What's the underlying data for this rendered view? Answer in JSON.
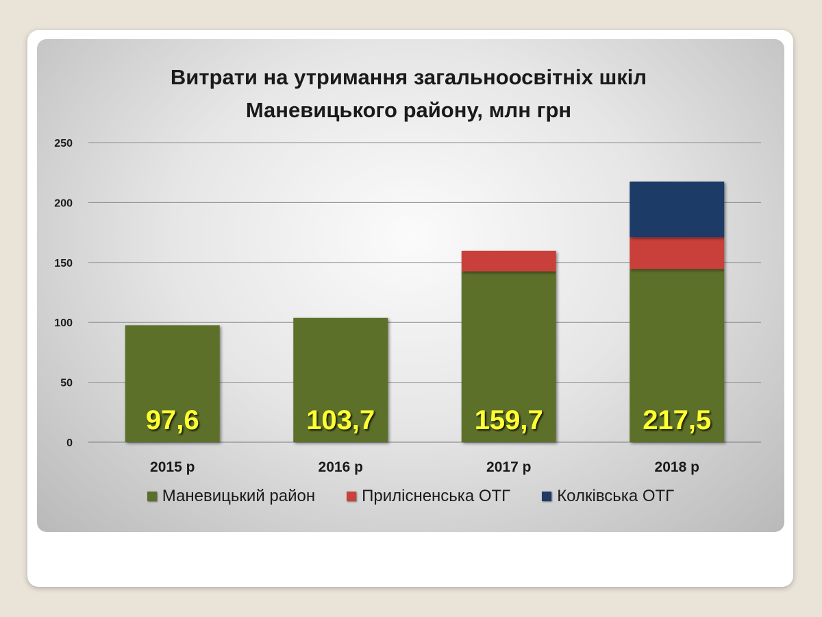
{
  "chart_data": {
    "type": "bar",
    "stacked": true,
    "title_lines": [
      "Витрати на утримання загальноосвітніх шкіл",
      "Маневицького району, млн грн"
    ],
    "categories": [
      "2015 р",
      "2016 р",
      "2017 р",
      "2018 р"
    ],
    "series": [
      {
        "name": "Маневицький район",
        "values": [
          97.6,
          103.7,
          142.5,
          144.5
        ],
        "color": "#5b6f2c"
      },
      {
        "name": "Прилісненська ОТГ",
        "values": [
          0,
          0,
          17.2,
          26.5
        ],
        "color": "#c9413b"
      },
      {
        "name": "Колківська ОТГ",
        "values": [
          0,
          0,
          0,
          46.5
        ],
        "color": "#1f3a66"
      }
    ],
    "totals": [
      "97,6",
      "103,7",
      "159,7",
      "217,5"
    ],
    "y_ticks": [
      "0",
      "50",
      "100",
      "150",
      "200",
      "250"
    ],
    "ylim": [
      0,
      250
    ],
    "grid": true,
    "legend_position": "bottom",
    "label_color": "#ffff33"
  }
}
